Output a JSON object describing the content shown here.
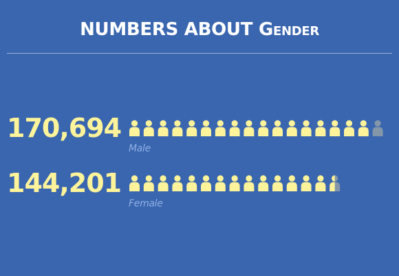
{
  "header": {
    "title_part1": "NUMBERS ABOUT ",
    "title_part2": "Gender"
  },
  "stats": [
    {
      "key": "male",
      "value": "170,694",
      "label": "Male",
      "icons_full": 17,
      "icon_partial_fraction": 0.0
    },
    {
      "key": "female",
      "value": "144,201",
      "label": "Female",
      "icons_full": 14,
      "icon_partial_fraction": 0.5
    }
  ],
  "icons": {
    "person": "person-icon"
  },
  "colors": {
    "background": "#3a66af",
    "title": "#ffffff",
    "divider": "#9fb6dc",
    "number": "#fdf39a",
    "icon_filled": "#fdf39a",
    "icon_empty": "#8397a8",
    "label": "#8fb0e4"
  }
}
